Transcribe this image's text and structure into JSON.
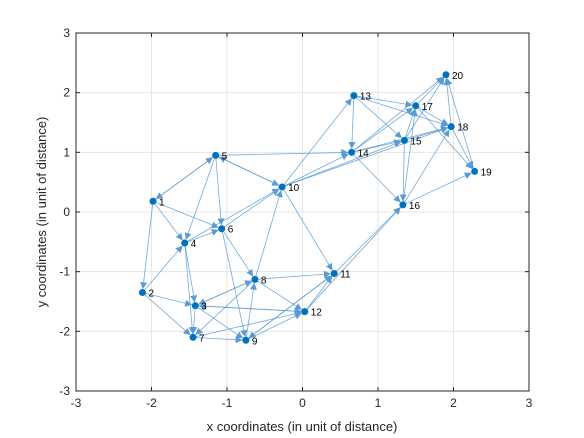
{
  "chart_data": {
    "type": "scatter",
    "title": "",
    "xlabel": "x coordinates (in unit of distance)",
    "ylabel": "y coordinates (in unit of distance)",
    "xlim": [
      -3,
      3
    ],
    "ylim": [
      -3,
      3
    ],
    "xticks": [
      "-3",
      "-2",
      "-1",
      "0",
      "1",
      "2",
      "3"
    ],
    "yticks": [
      "-3",
      "-2",
      "-1",
      "0",
      "1",
      "2",
      "3"
    ],
    "grid": true,
    "colors": {
      "node": "#0072BD",
      "edge": "#5B9BD5",
      "grid": "#E6E6E6",
      "axis": "#262626"
    },
    "nodes": [
      {
        "id": "1",
        "x": -1.98,
        "y": 0.18
      },
      {
        "id": "2",
        "x": -2.12,
        "y": -1.35
      },
      {
        "id": "3",
        "x": -1.42,
        "y": -1.57
      },
      {
        "id": "4",
        "x": -1.56,
        "y": -0.52
      },
      {
        "id": "5",
        "x": -1.15,
        "y": 0.95
      },
      {
        "id": "6",
        "x": -1.07,
        "y": -0.28
      },
      {
        "id": "7",
        "x": -1.45,
        "y": -2.1
      },
      {
        "id": "8",
        "x": -0.63,
        "y": -1.13
      },
      {
        "id": "9",
        "x": -0.75,
        "y": -2.15
      },
      {
        "id": "10",
        "x": -0.27,
        "y": 0.42
      },
      {
        "id": "11",
        "x": 0.42,
        "y": -1.03
      },
      {
        "id": "12",
        "x": 0.03,
        "y": -1.67
      },
      {
        "id": "13",
        "x": 0.68,
        "y": 1.95
      },
      {
        "id": "14",
        "x": 0.65,
        "y": 1.0
      },
      {
        "id": "15",
        "x": 1.35,
        "y": 1.2
      },
      {
        "id": "16",
        "x": 1.33,
        "y": 0.12
      },
      {
        "id": "17",
        "x": 1.5,
        "y": 1.78
      },
      {
        "id": "18",
        "x": 1.97,
        "y": 1.43
      },
      {
        "id": "19",
        "x": 2.28,
        "y": 0.68
      },
      {
        "id": "20",
        "x": 1.9,
        "y": 2.3
      }
    ],
    "edges": [
      [
        1,
        2
      ],
      [
        1,
        4
      ],
      [
        1,
        6
      ],
      [
        1,
        5
      ],
      [
        2,
        3
      ],
      [
        2,
        7
      ],
      [
        2,
        4
      ],
      [
        3,
        7
      ],
      [
        3,
        9
      ],
      [
        3,
        12
      ],
      [
        3,
        8
      ],
      [
        4,
        3
      ],
      [
        4,
        10
      ],
      [
        4,
        6
      ],
      [
        4,
        7
      ],
      [
        5,
        1
      ],
      [
        5,
        10
      ],
      [
        5,
        14
      ],
      [
        5,
        4
      ],
      [
        5,
        6
      ],
      [
        6,
        8
      ],
      [
        6,
        9
      ],
      [
        6,
        10
      ],
      [
        7,
        9
      ],
      [
        7,
        12
      ],
      [
        8,
        11
      ],
      [
        8,
        12
      ],
      [
        8,
        10
      ],
      [
        8,
        3
      ],
      [
        8,
        7
      ],
      [
        9,
        12
      ],
      [
        9,
        11
      ],
      [
        9,
        8
      ],
      [
        10,
        14
      ],
      [
        10,
        15
      ],
      [
        10,
        13
      ],
      [
        10,
        11
      ],
      [
        10,
        5
      ],
      [
        10,
        18
      ],
      [
        11,
        16
      ],
      [
        11,
        9
      ],
      [
        12,
        11
      ],
      [
        12,
        16
      ],
      [
        12,
        3
      ],
      [
        13,
        17
      ],
      [
        13,
        15
      ],
      [
        13,
        18
      ],
      [
        13,
        14
      ],
      [
        14,
        15
      ],
      [
        14,
        18
      ],
      [
        14,
        16
      ],
      [
        14,
        17
      ],
      [
        14,
        20
      ],
      [
        15,
        17
      ],
      [
        15,
        18
      ],
      [
        15,
        16
      ],
      [
        15,
        20
      ],
      [
        16,
        19
      ],
      [
        16,
        18
      ],
      [
        16,
        17
      ],
      [
        17,
        20
      ],
      [
        17,
        18
      ],
      [
        17,
        19
      ],
      [
        18,
        20
      ],
      [
        18,
        19
      ],
      [
        19,
        20
      ]
    ]
  }
}
